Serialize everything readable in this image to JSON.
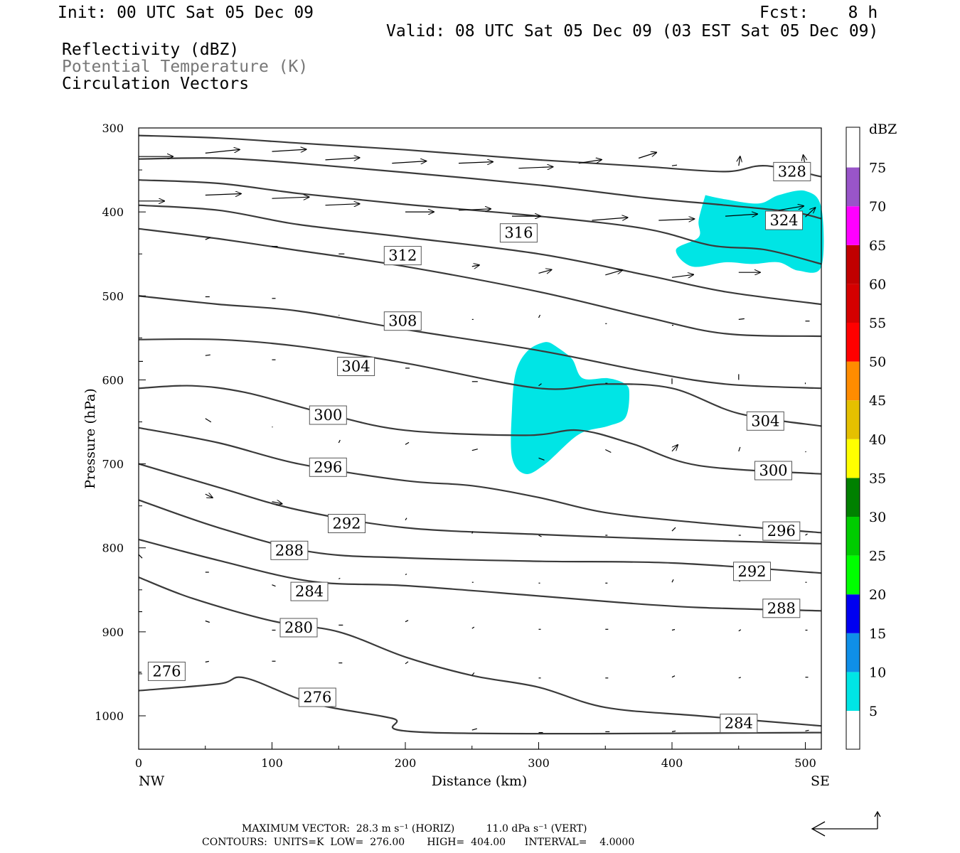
{
  "header": {
    "init": "Init: 00 UTC Sat 05 Dec 09",
    "fcst": "Fcst:    8 h",
    "valid": "Valid: 08 UTC Sat 05 Dec 09 (03 EST Sat 05 Dec 09)",
    "field1": "Reflectivity (dBZ)",
    "field2": "Potential Temperature (K)",
    "field3": "Circulation Vectors"
  },
  "footer": {
    "max_vector": "MAXIMUM VECTOR:  28.3 m s⁻¹ (HORIZ)          11.0 dPa s⁻¹ (VERT)",
    "contours": "CONTOURS:  UNITS=K  LOW=  276.00       HIGH=  404.00      INTERVAL=    4.0000"
  },
  "chart_data": {
    "type": "contour",
    "xlabel": "Distance (km)",
    "ylabel": "Pressure (hPa)",
    "x_left_label": "NW",
    "x_right_label": "SE",
    "xlim": [
      0,
      512
    ],
    "ylim": [
      1040,
      300
    ],
    "x_ticks": [
      0,
      100,
      200,
      300,
      400,
      500
    ],
    "y_ticks": [
      300,
      400,
      500,
      600,
      700,
      800,
      900,
      1000
    ],
    "colorbar": {
      "title": "dBZ",
      "levels": [
        5,
        10,
        15,
        20,
        25,
        30,
        35,
        40,
        45,
        50,
        55,
        60,
        65,
        70,
        75
      ],
      "colors": [
        "#00e5e5",
        "#0f8fe8",
        "#0000f0",
        "#00ff00",
        "#00cc00",
        "#008000",
        "#ffff00",
        "#e5c000",
        "#ff8c00",
        "#ff0000",
        "#d50000",
        "#c00000",
        "#ff00ff",
        "#9955c9",
        "#ffffff"
      ]
    },
    "contour_labels": [
      {
        "x": 490,
        "y": 352,
        "label": "328"
      },
      {
        "x": 484,
        "y": 410,
        "label": "324"
      },
      {
        "x": 285,
        "y": 425,
        "label": "316"
      },
      {
        "x": 198,
        "y": 452,
        "label": "312"
      },
      {
        "x": 198,
        "y": 530,
        "label": "308"
      },
      {
        "x": 163,
        "y": 584,
        "label": "304"
      },
      {
        "x": 470,
        "y": 649,
        "label": "304"
      },
      {
        "x": 142,
        "y": 642,
        "label": "300"
      },
      {
        "x": 476,
        "y": 708,
        "label": "300"
      },
      {
        "x": 142,
        "y": 704,
        "label": "296"
      },
      {
        "x": 482,
        "y": 780,
        "label": "296"
      },
      {
        "x": 156,
        "y": 771,
        "label": "292"
      },
      {
        "x": 460,
        "y": 828,
        "label": "292"
      },
      {
        "x": 113,
        "y": 803,
        "label": "288"
      },
      {
        "x": 482,
        "y": 872,
        "label": "288"
      },
      {
        "x": 128,
        "y": 852,
        "label": "284"
      },
      {
        "x": 450,
        "y": 1009,
        "label": "284"
      },
      {
        "x": 120,
        "y": 895,
        "label": "280"
      },
      {
        "x": 21,
        "y": 947,
        "label": "276"
      },
      {
        "x": 134,
        "y": 978,
        "label": "276"
      }
    ],
    "isentropes": [
      {
        "theta": 328,
        "points": [
          [
            0,
            309
          ],
          [
            60,
            312
          ],
          [
            120,
            318
          ],
          [
            200,
            326
          ],
          [
            300,
            338
          ],
          [
            380,
            346
          ],
          [
            440,
            352
          ],
          [
            470,
            345
          ],
          [
            512,
            358
          ]
        ]
      },
      {
        "theta": 324,
        "points": [
          [
            0,
            337
          ],
          [
            60,
            336
          ],
          [
            120,
            342
          ],
          [
            200,
            353
          ],
          [
            300,
            368
          ],
          [
            380,
            383
          ],
          [
            440,
            392
          ],
          [
            490,
            400
          ],
          [
            512,
            408
          ]
        ]
      },
      {
        "theta": 320,
        "points": [
          [
            0,
            362
          ],
          [
            60,
            366
          ],
          [
            120,
            378
          ],
          [
            200,
            391
          ],
          [
            300,
            405
          ],
          [
            380,
            420
          ],
          [
            430,
            440
          ],
          [
            470,
            445
          ],
          [
            512,
            462
          ]
        ]
      },
      {
        "theta": 316,
        "points": [
          [
            0,
            392
          ],
          [
            60,
            398
          ],
          [
            120,
            415
          ],
          [
            200,
            430
          ],
          [
            300,
            450
          ],
          [
            380,
            475
          ],
          [
            440,
            495
          ],
          [
            512,
            510
          ]
        ]
      },
      {
        "theta": 312,
        "points": [
          [
            0,
            420
          ],
          [
            60,
            432
          ],
          [
            120,
            446
          ],
          [
            200,
            465
          ],
          [
            300,
            495
          ],
          [
            380,
            525
          ],
          [
            440,
            545
          ],
          [
            512,
            548
          ]
        ]
      },
      {
        "theta": 308,
        "points": [
          [
            0,
            500
          ],
          [
            60,
            510
          ],
          [
            120,
            518
          ],
          [
            200,
            540
          ],
          [
            300,
            565
          ],
          [
            380,
            590
          ],
          [
            440,
            605
          ],
          [
            512,
            610
          ]
        ]
      },
      {
        "theta": 304,
        "points": [
          [
            0,
            552
          ],
          [
            60,
            552
          ],
          [
            120,
            560
          ],
          [
            200,
            580
          ],
          [
            300,
            610
          ],
          [
            350,
            605
          ],
          [
            400,
            610
          ],
          [
            450,
            640
          ],
          [
            512,
            655
          ]
        ]
      },
      {
        "theta": 300,
        "points": [
          [
            0,
            610
          ],
          [
            40,
            607
          ],
          [
            80,
            615
          ],
          [
            140,
            640
          ],
          [
            200,
            660
          ],
          [
            290,
            666
          ],
          [
            330,
            660
          ],
          [
            370,
            676
          ],
          [
            420,
            702
          ],
          [
            512,
            712
          ]
        ]
      },
      {
        "theta": 296,
        "points": [
          [
            0,
            657
          ],
          [
            60,
            675
          ],
          [
            120,
            700
          ],
          [
            200,
            720
          ],
          [
            250,
            726
          ],
          [
            300,
            740
          ],
          [
            350,
            758
          ],
          [
            420,
            770
          ],
          [
            512,
            782
          ]
        ]
      },
      {
        "theta": 292,
        "points": [
          [
            0,
            700
          ],
          [
            60,
            728
          ],
          [
            120,
            755
          ],
          [
            200,
            776
          ],
          [
            300,
            784
          ],
          [
            400,
            790
          ],
          [
            512,
            795
          ]
        ]
      },
      {
        "theta": 288,
        "points": [
          [
            0,
            743
          ],
          [
            60,
            776
          ],
          [
            130,
            805
          ],
          [
            200,
            812
          ],
          [
            300,
            816
          ],
          [
            400,
            818
          ],
          [
            512,
            830
          ]
        ]
      },
      {
        "theta": 284,
        "points": [
          [
            0,
            790
          ],
          [
            60,
            815
          ],
          [
            130,
            840
          ],
          [
            200,
            845
          ],
          [
            290,
            856
          ],
          [
            360,
            865
          ],
          [
            420,
            871
          ],
          [
            512,
            875
          ]
        ]
      },
      {
        "theta": 280,
        "points": [
          [
            0,
            835
          ],
          [
            40,
            860
          ],
          [
            100,
            887
          ],
          [
            150,
            900
          ],
          [
            200,
            930
          ],
          [
            250,
            952
          ],
          [
            300,
            966
          ],
          [
            350,
            990
          ],
          [
            420,
            1000
          ],
          [
            512,
            1012
          ]
        ]
      },
      {
        "theta": 276,
        "points": [
          [
            0,
            970
          ],
          [
            60,
            962
          ],
          [
            80,
            955
          ],
          [
            130,
            985
          ],
          [
            190,
            1003
          ],
          [
            220,
            1020
          ],
          [
            512,
            1020
          ]
        ]
      }
    ],
    "reflectivity_regions": [
      {
        "dbz": 5,
        "points": [
          [
            313,
            560
          ],
          [
            325,
            575
          ],
          [
            333,
            598
          ],
          [
            352,
            598
          ],
          [
            365,
            605
          ],
          [
            368,
            617
          ],
          [
            365,
            645
          ],
          [
            352,
            655
          ],
          [
            330,
            665
          ],
          [
            305,
            700
          ],
          [
            290,
            712
          ],
          [
            280,
            692
          ],
          [
            280,
            635
          ],
          [
            283,
            590
          ],
          [
            292,
            565
          ],
          [
            305,
            555
          ]
        ]
      },
      {
        "dbz": 5,
        "points": [
          [
            425,
            380
          ],
          [
            440,
            385
          ],
          [
            465,
            390
          ],
          [
            480,
            380
          ],
          [
            500,
            375
          ],
          [
            512,
            395
          ],
          [
            512,
            465
          ],
          [
            495,
            470
          ],
          [
            480,
            460
          ],
          [
            460,
            462
          ],
          [
            440,
            460
          ],
          [
            415,
            465
          ],
          [
            403,
            445
          ],
          [
            420,
            430
          ],
          [
            420,
            410
          ]
        ]
      }
    ]
  }
}
